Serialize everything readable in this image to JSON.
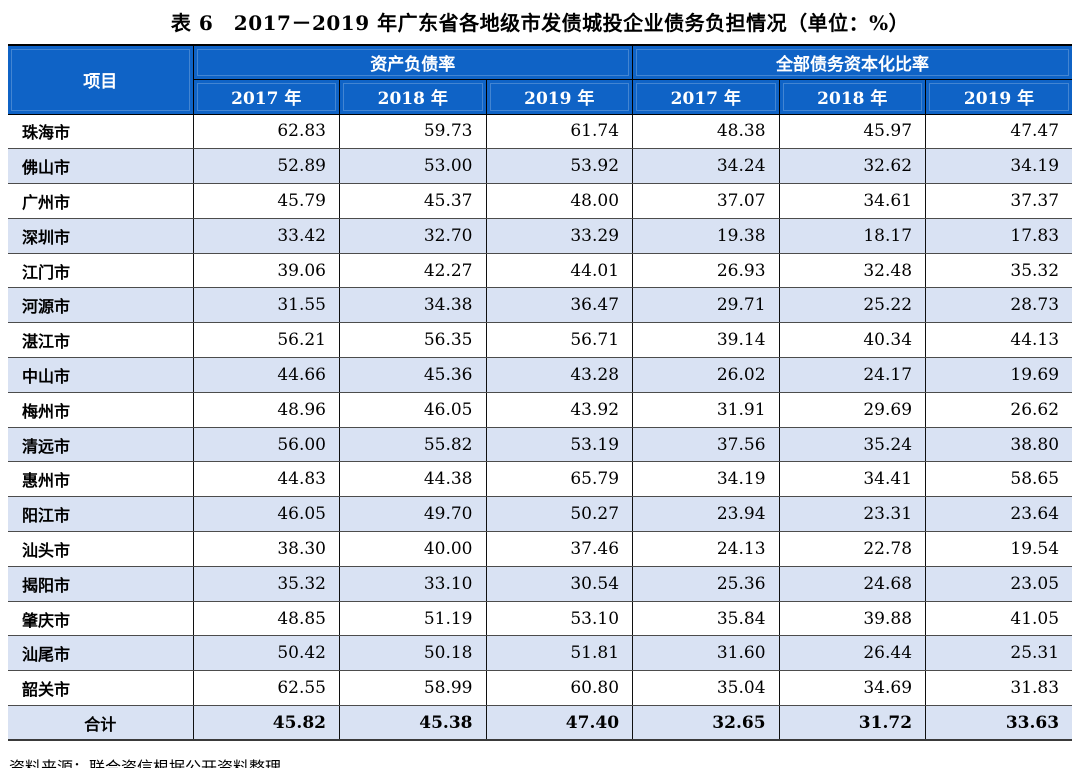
{
  "title": "表 6　2017－2019 年广东省各地级市发债城投企业债务负担情况（单位：%）",
  "source_note": "资料来源：联合资信根据公开资料整理",
  "colors": {
    "header_bg": "#0F63C6",
    "header_text": "#FFFFFF",
    "row_alt_bg": "#D9E2F3"
  },
  "table": {
    "corner_header": "项目",
    "column_groups": [
      {
        "label": "资产负债率",
        "years": [
          "2017 年",
          "2018 年",
          "2019 年"
        ]
      },
      {
        "label": "全部债务资本化比率",
        "years": [
          "2017 年",
          "2018 年",
          "2019 年"
        ]
      }
    ],
    "rows": [
      {
        "name": "珠海市",
        "values": [
          "62.83",
          "59.73",
          "61.74",
          "48.38",
          "45.97",
          "47.47"
        ]
      },
      {
        "name": "佛山市",
        "values": [
          "52.89",
          "53.00",
          "53.92",
          "34.24",
          "32.62",
          "34.19"
        ]
      },
      {
        "name": "广州市",
        "values": [
          "45.79",
          "45.37",
          "48.00",
          "37.07",
          "34.61",
          "37.37"
        ]
      },
      {
        "name": "深圳市",
        "values": [
          "33.42",
          "32.70",
          "33.29",
          "19.38",
          "18.17",
          "17.83"
        ]
      },
      {
        "name": "江门市",
        "values": [
          "39.06",
          "42.27",
          "44.01",
          "26.93",
          "32.48",
          "35.32"
        ]
      },
      {
        "name": "河源市",
        "values": [
          "31.55",
          "34.38",
          "36.47",
          "29.71",
          "25.22",
          "28.73"
        ]
      },
      {
        "name": "湛江市",
        "values": [
          "56.21",
          "56.35",
          "56.71",
          "39.14",
          "40.34",
          "44.13"
        ]
      },
      {
        "name": "中山市",
        "values": [
          "44.66",
          "45.36",
          "43.28",
          "26.02",
          "24.17",
          "19.69"
        ]
      },
      {
        "name": "梅州市",
        "values": [
          "48.96",
          "46.05",
          "43.92",
          "31.91",
          "29.69",
          "26.62"
        ]
      },
      {
        "name": "清远市",
        "values": [
          "56.00",
          "55.82",
          "53.19",
          "37.56",
          "35.24",
          "38.80"
        ]
      },
      {
        "name": "惠州市",
        "values": [
          "44.83",
          "44.38",
          "65.79",
          "34.19",
          "34.41",
          "58.65"
        ]
      },
      {
        "name": "阳江市",
        "values": [
          "46.05",
          "49.70",
          "50.27",
          "23.94",
          "23.31",
          "23.64"
        ]
      },
      {
        "name": "汕头市",
        "values": [
          "38.30",
          "40.00",
          "37.46",
          "24.13",
          "22.78",
          "19.54"
        ]
      },
      {
        "name": "揭阳市",
        "values": [
          "35.32",
          "33.10",
          "30.54",
          "25.36",
          "24.68",
          "23.05"
        ]
      },
      {
        "name": "肇庆市",
        "values": [
          "48.85",
          "51.19",
          "53.10",
          "35.84",
          "39.88",
          "41.05"
        ]
      },
      {
        "name": "汕尾市",
        "values": [
          "50.42",
          "50.18",
          "51.81",
          "31.60",
          "26.44",
          "25.31"
        ]
      },
      {
        "name": "韶关市",
        "values": [
          "62.55",
          "58.99",
          "60.80",
          "35.04",
          "34.69",
          "31.83"
        ]
      }
    ],
    "total_row": {
      "name": "合计",
      "values": [
        "45.82",
        "45.38",
        "47.40",
        "32.65",
        "31.72",
        "33.63"
      ]
    }
  }
}
